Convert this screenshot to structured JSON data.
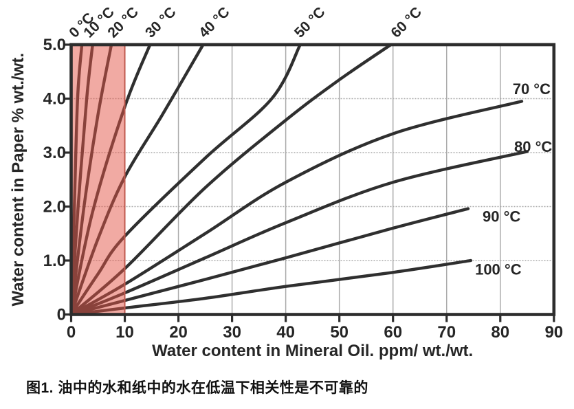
{
  "figure_caption": "图1. 油中的水和纸中的水在低温下相关性是不可靠的",
  "chart_data": {
    "type": "line",
    "title": "",
    "xlabel": "Water content in Mineral Oil. ppm/ wt./wt.",
    "ylabel": "Water content in Paper % wt./wt.",
    "xlim": [
      0,
      90
    ],
    "ylim": [
      0,
      5
    ],
    "grid": true,
    "x_ticks": [
      {
        "v": 0,
        "label": "0"
      },
      {
        "v": 10,
        "label": "10"
      },
      {
        "v": 20,
        "label": "20"
      },
      {
        "v": 30,
        "label": "30"
      },
      {
        "v": 40,
        "label": "40"
      },
      {
        "v": 50,
        "label": "50"
      },
      {
        "v": 60,
        "label": "60"
      },
      {
        "v": 70,
        "label": "70"
      },
      {
        "v": 80,
        "label": "80"
      },
      {
        "v": 90,
        "label": "90"
      }
    ],
    "y_ticks": [
      {
        "v": 0,
        "label": "0"
      },
      {
        "v": 1,
        "label": "1.0"
      },
      {
        "v": 2,
        "label": "2.0"
      },
      {
        "v": 3,
        "label": "3.0"
      },
      {
        "v": 4,
        "label": "4.0"
      },
      {
        "v": 5,
        "label": "5.0"
      }
    ],
    "highlight_region": {
      "x0": 0,
      "x1": 10,
      "fill": "rgba(228,85,72,0.5)",
      "border": "#c05a4f"
    },
    "colors": {
      "curve": "#2f2f2f",
      "grid": "#ababab",
      "frame": "#2d2d2d",
      "text": "#262626"
    },
    "series": [
      {
        "name": "0 °C",
        "temperature_c": 0,
        "label_side": "top",
        "label_x": 0.7,
        "points": [
          [
            0,
            0
          ],
          [
            0.6,
            2.0
          ],
          [
            1.2,
            4.0
          ],
          [
            2.0,
            5.0
          ]
        ]
      },
      {
        "name": "10 °C",
        "temperature_c": 10,
        "label_side": "top",
        "label_x": 3.4,
        "points": [
          [
            0,
            0
          ],
          [
            1.3,
            2.0
          ],
          [
            2.9,
            4.0
          ],
          [
            4.0,
            5.0
          ]
        ]
      },
      {
        "name": "20 °C",
        "temperature_c": 20,
        "label_side": "top",
        "label_x": 7.9,
        "points": [
          [
            0,
            0
          ],
          [
            2.4,
            2.0
          ],
          [
            5.0,
            3.7
          ],
          [
            7.5,
            5.0
          ]
        ]
      },
      {
        "name": "30 °C",
        "temperature_c": 30,
        "label_side": "top",
        "label_x": 14.9,
        "points": [
          [
            0,
            0
          ],
          [
            4.0,
            1.9
          ],
          [
            10,
            3.85
          ],
          [
            14.7,
            5.0
          ]
        ]
      },
      {
        "name": "40 °C",
        "temperature_c": 40,
        "label_side": "top",
        "label_x": 24.9,
        "points": [
          [
            0,
            0
          ],
          [
            5,
            1.4
          ],
          [
            10,
            2.55
          ],
          [
            17,
            3.7
          ],
          [
            24.6,
            5.0
          ]
        ]
      },
      {
        "name": "50 °C",
        "temperature_c": 50,
        "label_side": "top",
        "label_x": 42.7,
        "points": [
          [
            0,
            0
          ],
          [
            5,
            0.75
          ],
          [
            10,
            1.45
          ],
          [
            25,
            2.9
          ],
          [
            37.4,
            4.0
          ],
          [
            42.7,
            5.0
          ]
        ]
      },
      {
        "name": "60 °C",
        "temperature_c": 60,
        "label_side": "top",
        "label_x": 60.7,
        "points": [
          [
            0,
            0
          ],
          [
            10,
            0.85
          ],
          [
            25,
            2.35
          ],
          [
            40,
            3.6
          ],
          [
            50,
            4.35
          ],
          [
            59.6,
            5.0
          ]
        ]
      },
      {
        "name": "70 °C",
        "temperature_c": 70,
        "label_side": "right",
        "label_x": 82.3,
        "label_y": 4.17,
        "points": [
          [
            0,
            0
          ],
          [
            10,
            0.56
          ],
          [
            25,
            1.5
          ],
          [
            40,
            2.45
          ],
          [
            60,
            3.35
          ],
          [
            84,
            3.95
          ]
        ]
      },
      {
        "name": "80 °C",
        "temperature_c": 80,
        "label_side": "right",
        "label_x": 82.6,
        "label_y": 3.1,
        "points": [
          [
            0,
            0
          ],
          [
            10,
            0.4
          ],
          [
            25,
            1.05
          ],
          [
            40,
            1.7
          ],
          [
            60,
            2.45
          ],
          [
            85,
            3.02
          ]
        ]
      },
      {
        "name": "90 °C",
        "temperature_c": 90,
        "label_side": "right",
        "label_x": 76.7,
        "label_y": 1.81,
        "points": [
          [
            0,
            0
          ],
          [
            10,
            0.26
          ],
          [
            25,
            0.65
          ],
          [
            40,
            1.05
          ],
          [
            60,
            1.6
          ],
          [
            74,
            1.96
          ]
        ]
      },
      {
        "name": "100 °C",
        "temperature_c": 100,
        "label_side": "right",
        "label_x": 75.3,
        "label_y": 0.83,
        "points": [
          [
            0,
            0
          ],
          [
            10,
            0.12
          ],
          [
            25,
            0.3
          ],
          [
            40,
            0.52
          ],
          [
            60,
            0.78
          ],
          [
            74.5,
            1.0
          ]
        ]
      }
    ]
  }
}
